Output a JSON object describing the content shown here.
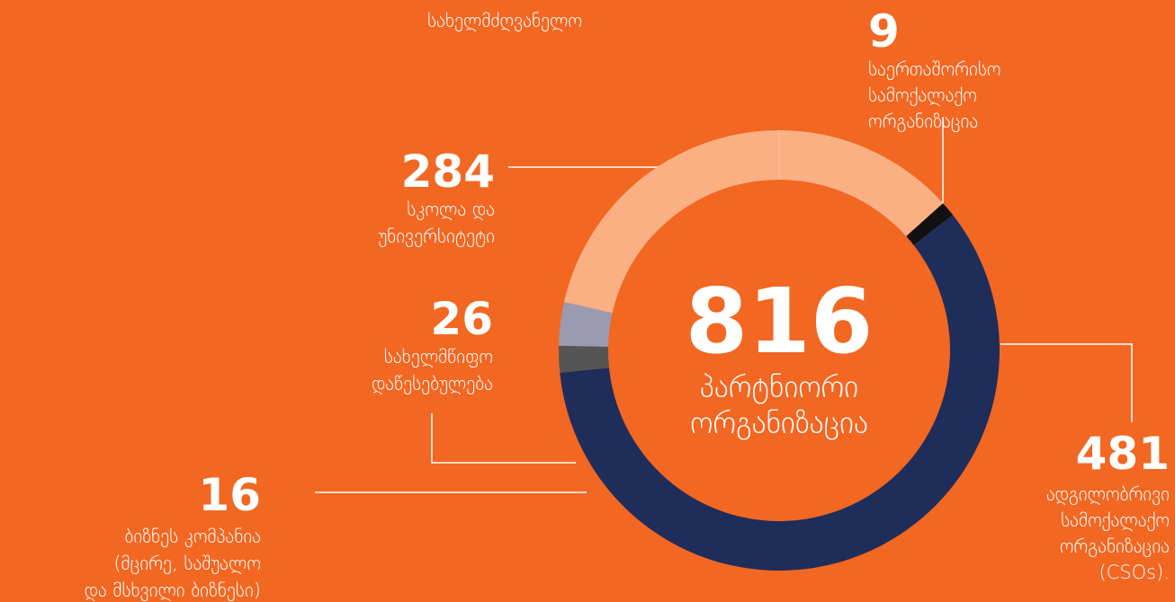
{
  "chart_data": {
    "type": "donut",
    "annotation": "სახელმძღვანელო",
    "total": 816,
    "center_label": [
      "პარტნიორი",
      "ორგანიზაცია"
    ],
    "series": [
      {
        "name": [
          "საერთაშორისო",
          "სამოქალაქო",
          "ორგანიზაცია"
        ],
        "value": 9,
        "color": "#111111"
      },
      {
        "name": [
          "ადგილობრივი",
          "სამოქალაქო",
          "ორგანიზაცია",
          "(CSOs)."
        ],
        "value": 481,
        "color": "#1f2d5a"
      },
      {
        "name": [
          "ბიზნეს კომპანია",
          "(მცირე, საშუალო",
          "და მსხვილი ბიზნესი)"
        ],
        "value": 16,
        "color": "#555555"
      },
      {
        "name": [
          "სახელმწიფო",
          "დაწესებულება"
        ],
        "value": 26,
        "color": "#9a9bb0"
      },
      {
        "name": [
          "სკოლა და",
          "უნივერსიტეტი"
        ],
        "value": 284,
        "color": "#fbb083"
      }
    ]
  }
}
